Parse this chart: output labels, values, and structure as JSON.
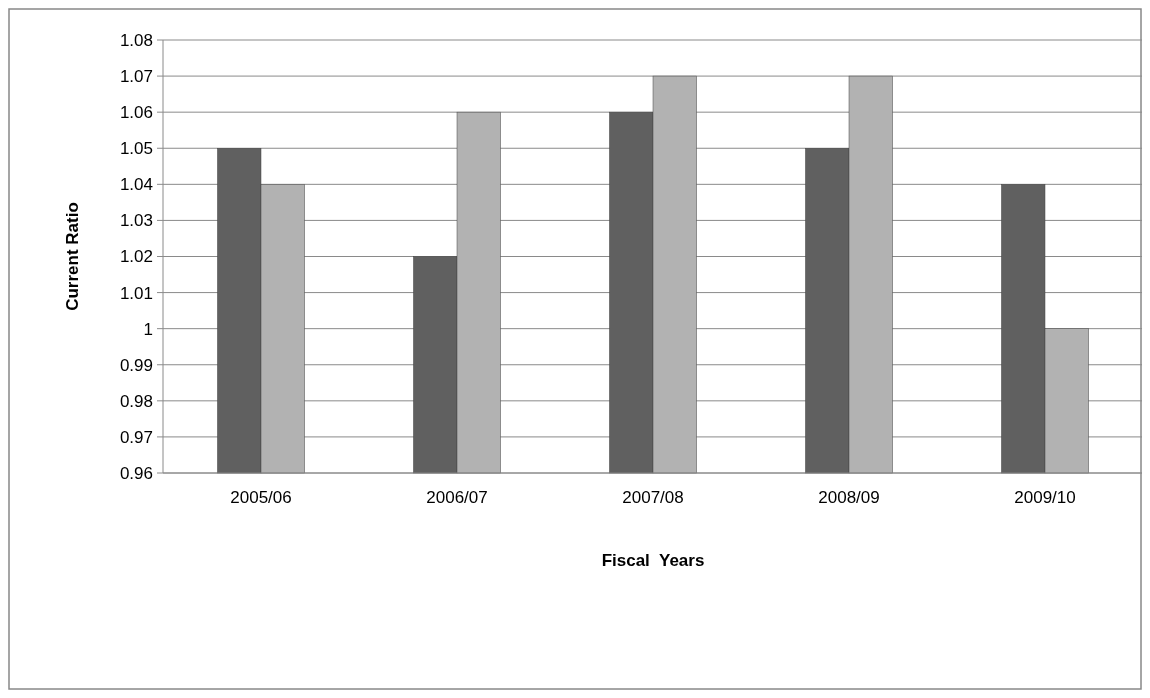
{
  "chart_data": {
    "type": "bar",
    "xlabel": "Fiscal  Years",
    "ylabel": "Current Ratio",
    "categories": [
      "2005/06",
      "2006/07",
      "2007/08",
      "2008/09",
      "2009/10"
    ],
    "series": [
      {
        "color": "#606060",
        "values": [
          1.05,
          1.02,
          1.06,
          1.05,
          1.04
        ]
      },
      {
        "color": "#b2b2b2",
        "values": [
          1.04,
          1.06,
          1.07,
          1.07,
          1.0
        ]
      }
    ],
    "ylim": [
      0.96,
      1.08
    ],
    "yticks": [
      0.96,
      0.97,
      0.98,
      0.99,
      1,
      1.01,
      1.02,
      1.03,
      1.04,
      1.05,
      1.06,
      1.07,
      1.08
    ],
    "grid": "y"
  }
}
